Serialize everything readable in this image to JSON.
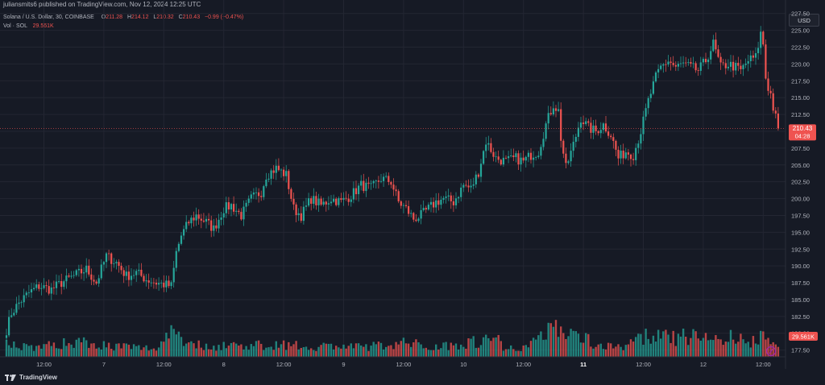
{
  "header": {
    "publish_line": "juliansmits6 published on TradingView.com, Nov 12, 2024 12:25 UTC"
  },
  "legend": {
    "symbol": "Solana / U.S. Dollar, 30, COINBASE",
    "o_label": "O",
    "o_value": "211.28",
    "h_label": "H",
    "h_value": "214.12",
    "l_label": "L",
    "l_value": "210.32",
    "c_label": "C",
    "c_value": "210.43",
    "change": "−0.99 (−0.47%)",
    "vol_label": "Vol · SOL",
    "vol_value": "29.561K"
  },
  "currency_button": "USD",
  "price_tag": {
    "price": "210.43",
    "countdown": "04:28"
  },
  "volume_tag": "29.561K",
  "brand": "TradingView",
  "colors": {
    "up": "#26a69a",
    "down": "#ef5350",
    "grid": "#232632",
    "bg": "#161a25"
  },
  "chart_data": {
    "type": "candlestick",
    "title": "Solana / U.S. Dollar, 30, COINBASE",
    "y_ticks": [
      "227.50",
      "225.00",
      "222.50",
      "220.00",
      "217.50",
      "215.00",
      "212.50",
      "210.00",
      "207.50",
      "205.00",
      "202.50",
      "200.00",
      "197.50",
      "195.00",
      "192.50",
      "190.00",
      "187.50",
      "185.00",
      "182.50",
      "180.00",
      "177.50"
    ],
    "ylim": [
      176.5,
      229.5
    ],
    "x_ticks": [
      {
        "label": "12:00",
        "index": 15,
        "bold": false
      },
      {
        "label": "7",
        "index": 39,
        "bold": false
      },
      {
        "label": "12:00",
        "index": 63,
        "bold": false
      },
      {
        "label": "8",
        "index": 87,
        "bold": false
      },
      {
        "label": "12:00",
        "index": 111,
        "bold": false
      },
      {
        "label": "9",
        "index": 135,
        "bold": false
      },
      {
        "label": "12:00",
        "index": 159,
        "bold": false
      },
      {
        "label": "10",
        "index": 183,
        "bold": false
      },
      {
        "label": "12:00",
        "index": 207,
        "bold": false
      },
      {
        "label": "11",
        "index": 231,
        "bold": true
      },
      {
        "label": "12:00",
        "index": 255,
        "bold": false
      },
      {
        "label": "12",
        "index": 279,
        "bold": false
      },
      {
        "label": "12:00",
        "index": 303,
        "bold": false
      }
    ],
    "last_price": 210.43,
    "keyframes": [
      [
        0,
        180.5
      ],
      [
        2,
        183.0
      ],
      [
        5,
        184.5
      ],
      [
        9,
        186.0
      ],
      [
        13,
        187.0
      ],
      [
        18,
        186.5
      ],
      [
        22,
        187.5
      ],
      [
        27,
        188.5
      ],
      [
        32,
        189.5
      ],
      [
        36,
        187.5
      ],
      [
        40,
        191.5
      ],
      [
        44,
        190.5
      ],
      [
        48,
        188.5
      ],
      [
        52,
        189.0
      ],
      [
        56,
        188.0
      ],
      [
        60,
        187.5
      ],
      [
        66,
        187.0
      ],
      [
        68,
        192.0
      ],
      [
        70,
        194.5
      ],
      [
        73,
        196.5
      ],
      [
        76,
        197.5
      ],
      [
        80,
        196.5
      ],
      [
        83,
        195.5
      ],
      [
        87,
        198.5
      ],
      [
        90,
        199.0
      ],
      [
        94,
        197.5
      ],
      [
        98,
        200.0
      ],
      [
        102,
        201.0
      ],
      [
        104,
        203.5
      ],
      [
        108,
        204.5
      ],
      [
        112,
        203.5
      ],
      [
        115,
        198.5
      ],
      [
        118,
        197.5
      ],
      [
        122,
        200.0
      ],
      [
        126,
        199.0
      ],
      [
        130,
        200.0
      ],
      [
        134,
        199.5
      ],
      [
        138,
        200.5
      ],
      [
        142,
        202.0
      ],
      [
        146,
        201.5
      ],
      [
        150,
        203.0
      ],
      [
        154,
        202.5
      ],
      [
        157,
        199.5
      ],
      [
        160,
        198.5
      ],
      [
        163,
        197.0
      ],
      [
        166,
        197.5
      ],
      [
        169,
        198.5
      ],
      [
        172,
        199.5
      ],
      [
        175,
        200.0
      ],
      [
        179,
        199.5
      ],
      [
        183,
        202.0
      ],
      [
        186,
        201.5
      ],
      [
        189,
        204.0
      ],
      [
        192,
        208.5
      ],
      [
        196,
        206.0
      ],
      [
        200,
        205.5
      ],
      [
        204,
        206.0
      ],
      [
        207,
        205.5
      ],
      [
        210,
        206.5
      ],
      [
        213,
        207.0
      ],
      [
        216,
        211.0
      ],
      [
        219,
        214.0
      ],
      [
        221,
        213.0
      ],
      [
        222,
        209.0
      ],
      [
        224,
        204.5
      ],
      [
        227,
        208.0
      ],
      [
        230,
        212.0
      ],
      [
        233,
        210.5
      ],
      [
        236,
        210.0
      ],
      [
        239,
        211.0
      ],
      [
        242,
        209.5
      ],
      [
        245,
        206.0
      ],
      [
        248,
        207.0
      ],
      [
        251,
        206.5
      ],
      [
        254,
        210.0
      ],
      [
        257,
        214.5
      ],
      [
        260,
        218.0
      ],
      [
        262,
        219.5
      ],
      [
        265,
        220.5
      ],
      [
        268,
        219.5
      ],
      [
        271,
        220.0
      ],
      [
        274,
        219.5
      ],
      [
        277,
        219.0
      ],
      [
        280,
        220.5
      ],
      [
        283,
        223.0
      ],
      [
        286,
        219.5
      ],
      [
        289,
        220.0
      ],
      [
        292,
        219.5
      ],
      [
        294,
        219.0
      ],
      [
        297,
        220.5
      ],
      [
        300,
        221.0
      ],
      [
        302,
        224.5
      ],
      [
        303,
        223.0
      ],
      [
        304,
        218.0
      ],
      [
        305,
        216.5
      ],
      [
        306,
        215.5
      ],
      [
        307,
        213.5
      ],
      [
        308,
        212.0
      ],
      [
        309,
        210.43
      ]
    ],
    "volume_keyframes": [
      [
        0,
        18
      ],
      [
        10,
        12
      ],
      [
        20,
        15
      ],
      [
        30,
        20
      ],
      [
        40,
        14
      ],
      [
        50,
        12
      ],
      [
        60,
        10
      ],
      [
        66,
        35
      ],
      [
        68,
        42
      ],
      [
        70,
        22
      ],
      [
        80,
        12
      ],
      [
        90,
        15
      ],
      [
        100,
        14
      ],
      [
        110,
        16
      ],
      [
        120,
        12
      ],
      [
        130,
        14
      ],
      [
        140,
        12
      ],
      [
        150,
        14
      ],
      [
        160,
        18
      ],
      [
        170,
        12
      ],
      [
        180,
        16
      ],
      [
        190,
        20
      ],
      [
        196,
        24
      ],
      [
        200,
        10
      ],
      [
        210,
        14
      ],
      [
        216,
        36
      ],
      [
        220,
        40
      ],
      [
        224,
        28
      ],
      [
        230,
        25
      ],
      [
        240,
        12
      ],
      [
        250,
        16
      ],
      [
        258,
        28
      ],
      [
        266,
        22
      ],
      [
        274,
        26
      ],
      [
        282,
        22
      ],
      [
        290,
        24
      ],
      [
        298,
        16
      ],
      [
        302,
        28
      ],
      [
        305,
        34
      ],
      [
        309,
        9
      ]
    ]
  }
}
